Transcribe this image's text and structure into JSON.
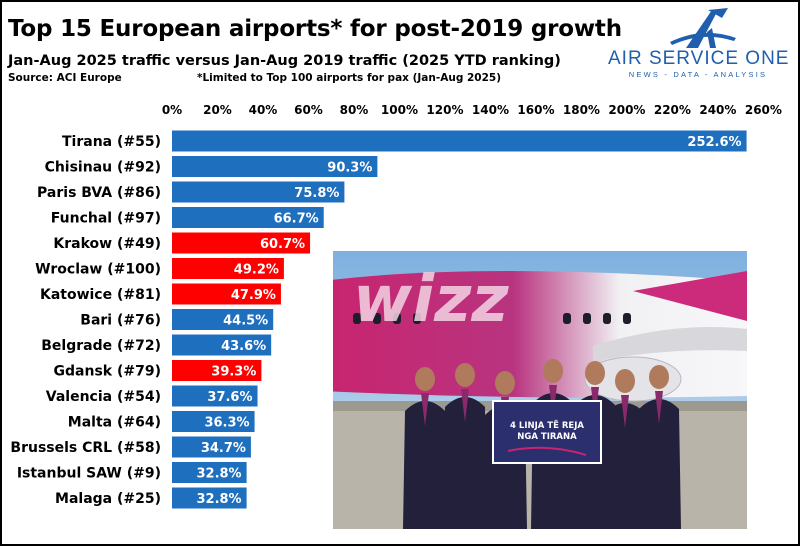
{
  "header": {
    "title": "Top 15 European airports* for post-2019 growth",
    "subtitle": "Jan-Aug 2025 traffic versus Jan-Aug 2019 traffic (2025 YTD ranking)",
    "source": "Source: ACI Europe",
    "footnote": "*Limited to Top 100 airports for pax (Jan-Aug 2025)"
  },
  "logo": {
    "name": "AIR SERVICE ONE",
    "tagline": "NEWS - DATA - ANALYSIS"
  },
  "photo": {
    "banner_line1": "4 LINJA TË REJA",
    "banner_line2": "NGA TIRANA",
    "aircraft_text": "wizz"
  },
  "colors": {
    "bar_default": "#1f6fbf",
    "bar_highlight": "#ff0000",
    "label_text": "#ffffff",
    "brand": "#1f5fae"
  },
  "chart_data": {
    "type": "bar",
    "orientation": "horizontal",
    "title": "Top 15 European airports* for post-2019 growth",
    "xlabel": "",
    "ylabel": "",
    "xlim": [
      0,
      260
    ],
    "tick_values": [
      0,
      20,
      40,
      60,
      80,
      100,
      120,
      140,
      160,
      180,
      200,
      220,
      240,
      260
    ],
    "tick_labels": [
      "0%",
      "20%",
      "40%",
      "60%",
      "80%",
      "100%",
      "120%",
      "140%",
      "160%",
      "180%",
      "200%",
      "220%",
      "240%",
      "260%"
    ],
    "grid": false,
    "categories": [
      "Tirana (#55)",
      "Chisinau (#92)",
      "Paris BVA (#86)",
      "Funchal (#97)",
      "Krakow (#49)",
      "Wroclaw (#100)",
      "Katowice (#81)",
      "Bari (#76)",
      "Belgrade (#72)",
      "Gdansk (#79)",
      "Valencia (#54)",
      "Malta (#64)",
      "Brussels CRL (#58)",
      "Istanbul SAW (#9)",
      "Malaga (#25)"
    ],
    "values": [
      252.6,
      90.3,
      75.8,
      66.7,
      60.7,
      49.2,
      47.9,
      44.5,
      43.6,
      39.3,
      37.6,
      36.3,
      34.7,
      32.8,
      32.8
    ],
    "value_labels": [
      "252.6%",
      "90.3%",
      "75.8%",
      "66.7%",
      "60.7%",
      "49.2%",
      "47.9%",
      "44.5%",
      "43.6%",
      "39.3%",
      "37.6%",
      "36.3%",
      "34.7%",
      "32.8%",
      "32.8%"
    ],
    "highlighted": [
      "Krakow (#49)",
      "Wroclaw (#100)",
      "Katowice (#81)",
      "Gdansk (#79)"
    ]
  }
}
